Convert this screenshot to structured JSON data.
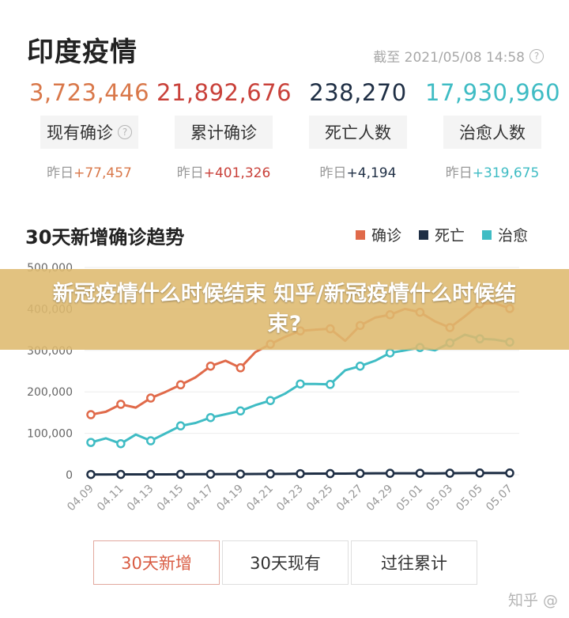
{
  "header": {
    "title": "印度疫情",
    "timestamp": "截至 2021/05/08 14:58"
  },
  "stats": [
    {
      "value": "3,723,446",
      "label": "现有确诊",
      "delta_prefix": "昨日",
      "delta": "+77,457",
      "color": "#d9784a",
      "has_help": true
    },
    {
      "value": "21,892,676",
      "label": "累计确诊",
      "delta_prefix": "昨日",
      "delta": "+401,326",
      "color": "#c9413a",
      "has_help": false
    },
    {
      "value": "238,270",
      "label": "死亡人数",
      "delta_prefix": "昨日",
      "delta": "+4,194",
      "color": "#1f2f45",
      "has_help": false
    },
    {
      "value": "17,930,960",
      "label": "治愈人数",
      "delta_prefix": "昨日",
      "delta": "+319,675",
      "color": "#3fbcc4",
      "has_help": false
    }
  ],
  "chart_section": {
    "title": "30天新增确诊趋势",
    "legend": [
      {
        "label": "确诊",
        "color": "#e06a4a"
      },
      {
        "label": "死亡",
        "color": "#1f2f45"
      },
      {
        "label": "治愈",
        "color": "#3fbcc4"
      }
    ]
  },
  "banner": {
    "text": "新冠疫情什么时候结束 知乎/新冠疫情什么时候结束?"
  },
  "tabs": [
    {
      "label": "30天新增",
      "active": true
    },
    {
      "label": "30天现有",
      "active": false
    },
    {
      "label": "过往累计",
      "active": false
    }
  ],
  "watermark": "知乎 @",
  "chart_data": {
    "type": "line",
    "title": "30天新增确诊趋势",
    "x": [
      "04.09",
      "04.10",
      "04.11",
      "04.12",
      "04.13",
      "04.14",
      "04.15",
      "04.16",
      "04.17",
      "04.18",
      "04.19",
      "04.20",
      "04.21",
      "04.22",
      "04.23",
      "04.24",
      "04.25",
      "04.26",
      "04.27",
      "04.28",
      "04.29",
      "04.30",
      "05.01",
      "05.02",
      "05.03",
      "05.04",
      "05.05",
      "05.06",
      "05.07"
    ],
    "xtick_labels": [
      "04.09",
      "04.11",
      "04.13",
      "04.15",
      "04.17",
      "04.19",
      "04.21",
      "04.23",
      "04.25",
      "04.27",
      "04.29",
      "05.01",
      "05.03",
      "05.05",
      "05.07"
    ],
    "yticks": [
      0,
      100000,
      200000,
      300000,
      400000,
      500000
    ],
    "ytick_labels": [
      "0",
      "100,000",
      "200,000",
      "300,000",
      "400,000",
      "500,000"
    ],
    "ylim": [
      0,
      500000
    ],
    "grid": true,
    "legend_position": "top-right",
    "series": [
      {
        "name": "确诊",
        "color": "#e06a4a",
        "values": [
          145000,
          152000,
          170000,
          162000,
          185000,
          200000,
          217000,
          235000,
          262000,
          275000,
          258000,
          296000,
          315000,
          333000,
          347000,
          350000,
          352000,
          323000,
          360000,
          379000,
          386000,
          400000,
          392000,
          370000,
          355000,
          382000,
          412000,
          414000,
          401000
        ]
      },
      {
        "name": "死亡",
        "color": "#1f2f45",
        "values": [
          780,
          800,
          900,
          880,
          1030,
          1040,
          1180,
          1340,
          1500,
          1620,
          1760,
          2020,
          2100,
          2260,
          2630,
          2770,
          2810,
          2770,
          3290,
          3650,
          3500,
          3520,
          3690,
          3420,
          3780,
          3970,
          4190,
          4190,
          4190
        ]
      },
      {
        "name": "治愈",
        "color": "#3fbcc4",
        "values": [
          78000,
          88000,
          75000,
          97000,
          82000,
          100000,
          118000,
          125000,
          138000,
          146000,
          154000,
          168000,
          179000,
          196000,
          219000,
          219000,
          218000,
          252000,
          262000,
          275000,
          294000,
          300000,
          307000,
          300000,
          318000,
          338000,
          328000,
          326000,
          320000
        ]
      }
    ]
  }
}
